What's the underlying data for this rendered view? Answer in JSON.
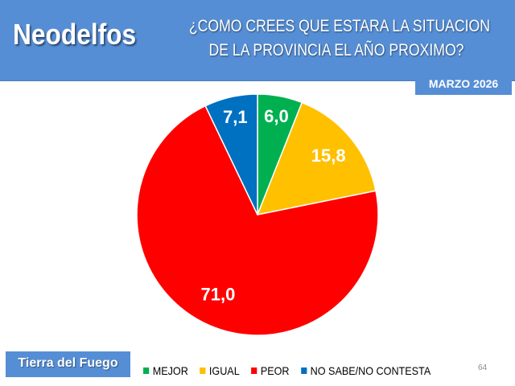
{
  "header": {
    "brand": "Neodelfos",
    "title_line1": "¿COMO CREES QUE ESTARA LA SITUACION",
    "title_line2": "DE LA PROVINCIA EL AÑO PROXIMO?"
  },
  "date_badge": "MARZO 2026",
  "region_badge": "Tierra del Fuego",
  "page_number": "64",
  "chart_data": {
    "type": "pie",
    "title": "¿COMO CREES QUE ESTARA LA SITUACION DE LA PROVINCIA EL AÑO PROXIMO?",
    "categories": [
      "MEJOR",
      "IGUAL",
      "PEOR",
      "NO SABE/NO CONTESTA"
    ],
    "values": [
      6.0,
      15.8,
      71.0,
      7.1
    ],
    "labels": [
      "6,0",
      "15,8",
      "71,0",
      "7,1"
    ],
    "colors": [
      "#00B050",
      "#FFC000",
      "#FF0000",
      "#0070C0"
    ],
    "start": "top, clockwise",
    "legend_position": "bottom"
  }
}
